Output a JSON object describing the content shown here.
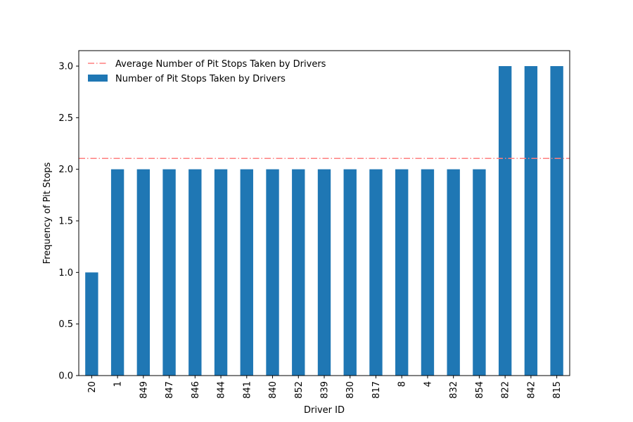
{
  "chart_data": {
    "type": "bar",
    "title": "",
    "xlabel": "Driver ID",
    "ylabel": "Frequency of Pit Stops",
    "categories": [
      "20",
      "1",
      "849",
      "847",
      "846",
      "844",
      "841",
      "840",
      "852",
      "839",
      "830",
      "817",
      "8",
      "4",
      "832",
      "854",
      "822",
      "842",
      "815"
    ],
    "series": [
      {
        "name": "Number of Pit Stops Taken by Drivers",
        "values": [
          1,
          2,
          2,
          2,
          2,
          2,
          2,
          2,
          2,
          2,
          2,
          2,
          2,
          2,
          2,
          2,
          3,
          3,
          3
        ],
        "color": "#1f77b4"
      }
    ],
    "reference_line": {
      "name": "Average Number of Pit Stops Taken by Drivers",
      "value": 2.105,
      "color": "#ff7f7f",
      "style": "dash-dot"
    },
    "ylim": [
      0,
      3.15
    ],
    "yticks": [
      "0.0",
      "0.5",
      "1.0",
      "1.5",
      "2.0",
      "2.5",
      "3.0"
    ],
    "grid": false,
    "legend_position": "upper-left"
  }
}
